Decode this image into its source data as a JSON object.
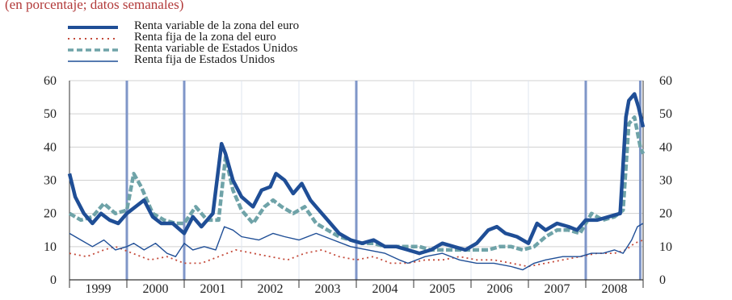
{
  "subtitle": "(en porcentaje; datos semanales)",
  "colors": {
    "euro_equity": "#1f4e96",
    "euro_bonds": "#c44a3a",
    "us_equity": "#6fa3a8",
    "us_bonds": "#1f4e96",
    "vertical_bars": "#7f96c8"
  },
  "legend": [
    {
      "label": "Renta variable de la zona del euro",
      "style": "thick"
    },
    {
      "label": "Renta fija de la zona del euro",
      "style": "dotted"
    },
    {
      "label": "Renta variable de Estados Unidos",
      "style": "dashed"
    },
    {
      "label": "Renta fija de Estados Unidos",
      "style": "thin"
    }
  ],
  "chart_data": {
    "type": "line",
    "ylim": [
      0,
      60
    ],
    "yticks": [
      "0",
      "10",
      "20",
      "30",
      "40",
      "50",
      "60"
    ],
    "xlim": [
      1999.0,
      2009.0
    ],
    "xtick_labels": [
      "1999",
      "2000",
      "2001",
      "2002",
      "2003",
      "2004",
      "2005",
      "2006",
      "2007",
      "2008"
    ],
    "vertical_bars": [
      2000.0,
      2001.0,
      2004.0,
      2008.0,
      2008.95
    ],
    "series": [
      {
        "name": "Renta variable de la zona del euro",
        "x": [
          1999.0,
          1999.1,
          1999.25,
          1999.4,
          1999.55,
          1999.7,
          1999.85,
          2000.0,
          2000.15,
          2000.3,
          2000.45,
          2000.6,
          2000.8,
          2001.0,
          2001.15,
          2001.3,
          2001.5,
          2001.65,
          2001.72,
          2001.85,
          2002.0,
          2002.2,
          2002.35,
          2002.5,
          2002.6,
          2002.75,
          2002.9,
          2003.05,
          2003.2,
          2003.35,
          2003.5,
          2003.7,
          2003.9,
          2004.1,
          2004.3,
          2004.5,
          2004.7,
          2004.9,
          2005.1,
          2005.3,
          2005.5,
          2005.7,
          2005.9,
          2006.1,
          2006.3,
          2006.45,
          2006.6,
          2006.8,
          2007.0,
          2007.15,
          2007.3,
          2007.5,
          2007.7,
          2007.85,
          2008.0,
          2008.2,
          2008.4,
          2008.6,
          2008.7,
          2008.75,
          2008.85,
          2008.92,
          2009.0
        ],
        "values": [
          32,
          25,
          20,
          17,
          20,
          18,
          17,
          20,
          22,
          24,
          19,
          17,
          17,
          14,
          19,
          16,
          20,
          41,
          38,
          30,
          25,
          22,
          27,
          28,
          32,
          30,
          26,
          29,
          24,
          21,
          18,
          14,
          12,
          11,
          12,
          10,
          10,
          9,
          8,
          9,
          11,
          10,
          9,
          11,
          15,
          16,
          14,
          13,
          11,
          17,
          15,
          17,
          16,
          15,
          18,
          18,
          19,
          20,
          49,
          54,
          56,
          52,
          46
        ]
      },
      {
        "name": "Renta fija de la zona del euro",
        "x": [
          1999.0,
          1999.3,
          1999.6,
          1999.8,
          2000.1,
          2000.4,
          2000.7,
          2001.0,
          2001.3,
          2001.6,
          2001.9,
          2002.2,
          2002.5,
          2002.8,
          2003.1,
          2003.4,
          2003.7,
          2004.0,
          2004.3,
          2004.6,
          2004.9,
          2005.2,
          2005.5,
          2005.8,
          2006.1,
          2006.4,
          2006.7,
          2007.0,
          2007.3,
          2007.6,
          2007.9,
          2008.2,
          2008.5,
          2008.7,
          2008.85,
          2009.0
        ],
        "values": [
          8,
          7,
          9,
          10,
          8,
          6,
          7,
          5,
          5,
          7,
          9,
          8,
          7,
          6,
          8,
          9,
          7,
          6,
          7,
          5,
          5,
          6,
          6,
          7,
          6,
          6,
          5,
          4,
          5,
          6,
          7,
          8,
          8,
          9,
          11,
          12
        ]
      },
      {
        "name": "Renta variable de Estados Unidos",
        "x": [
          1999.0,
          1999.2,
          1999.4,
          1999.6,
          1999.8,
          2000.0,
          2000.12,
          2000.25,
          2000.45,
          2000.65,
          2000.85,
          2001.0,
          2001.2,
          2001.4,
          2001.6,
          2001.72,
          2001.85,
          2002.0,
          2002.2,
          2002.4,
          2002.55,
          2002.7,
          2002.9,
          2003.1,
          2003.3,
          2003.5,
          2003.7,
          2003.9,
          2004.1,
          2004.3,
          2004.5,
          2004.7,
          2004.9,
          2005.1,
          2005.3,
          2005.5,
          2005.7,
          2005.9,
          2006.1,
          2006.3,
          2006.5,
          2006.7,
          2006.9,
          2007.1,
          2007.3,
          2007.5,
          2007.7,
          2007.9,
          2008.1,
          2008.3,
          2008.5,
          2008.65,
          2008.75,
          2008.85,
          2008.95,
          2009.0
        ],
        "values": [
          20,
          18,
          19,
          23,
          20,
          21,
          32,
          28,
          20,
          18,
          17,
          17,
          22,
          18,
          18,
          37,
          27,
          21,
          17,
          22,
          24,
          22,
          20,
          22,
          17,
          15,
          13,
          12,
          11,
          11,
          10,
          10,
          10,
          10,
          9,
          9,
          9,
          9,
          9,
          9,
          10,
          10,
          9,
          10,
          13,
          15,
          15,
          14,
          20,
          18,
          19,
          21,
          47,
          49,
          40,
          38
        ]
      },
      {
        "name": "Renta fija de Estados Unidos",
        "x": [
          1999.0,
          1999.2,
          1999.4,
          1999.6,
          1999.8,
          2000.0,
          2000.12,
          2000.3,
          2000.5,
          2000.7,
          2000.85,
          2001.0,
          2001.15,
          2001.35,
          2001.55,
          2001.7,
          2001.85,
          2002.0,
          2002.3,
          2002.55,
          2002.75,
          2003.0,
          2003.3,
          2003.6,
          2003.9,
          2004.2,
          2004.5,
          2004.75,
          2004.9,
          2005.2,
          2005.5,
          2005.8,
          2006.1,
          2006.4,
          2006.7,
          2006.9,
          2007.1,
          2007.3,
          2007.6,
          2007.9,
          2008.1,
          2008.3,
          2008.5,
          2008.65,
          2008.8,
          2008.9,
          2009.0
        ],
        "values": [
          14,
          12,
          10,
          12,
          9,
          10,
          11,
          9,
          11,
          8,
          7,
          11,
          9,
          10,
          9,
          16,
          15,
          13,
          12,
          14,
          13,
          12,
          14,
          12,
          10,
          9,
          8,
          6,
          5,
          7,
          8,
          6,
          5,
          5,
          4,
          3,
          5,
          6,
          7,
          7,
          8,
          8,
          9,
          8,
          12,
          16,
          17
        ]
      }
    ]
  }
}
